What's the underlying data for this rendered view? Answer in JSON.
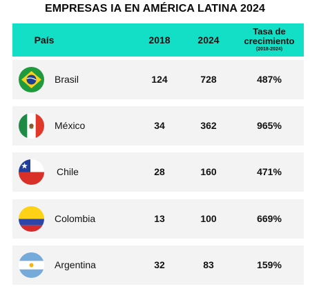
{
  "title": "EMPRESAS IA EN AMÉRICA LATINA 2024",
  "header": {
    "pais": "País",
    "y2018": "2018",
    "y2024": "2024",
    "growth_line1": "Tasa de",
    "growth_line2": "crecimiento",
    "growth_line3": "(2018-2024)"
  },
  "rows": [
    {
      "country": "Brasil",
      "flag": "brazil-flag-icon",
      "v2018": "124",
      "v2024": "728",
      "growth": "487%"
    },
    {
      "country": "México",
      "flag": "mexico-flag-icon",
      "v2018": "34",
      "v2024": "362",
      "growth": "965%"
    },
    {
      "country": "Chile",
      "flag": "chile-flag-icon",
      "v2018": "28",
      "v2024": "160",
      "growth": "471%"
    },
    {
      "country": "Colombia",
      "flag": "colombia-flag-icon",
      "v2018": "13",
      "v2024": "100",
      "growth": "669%"
    },
    {
      "country": "Argentina",
      "flag": "argentina-flag-icon",
      "v2018": "32",
      "v2024": "83",
      "growth": "159%"
    }
  ],
  "colors": {
    "header_bg": "#13dfc7",
    "row_bg": "#f3f3f3"
  }
}
